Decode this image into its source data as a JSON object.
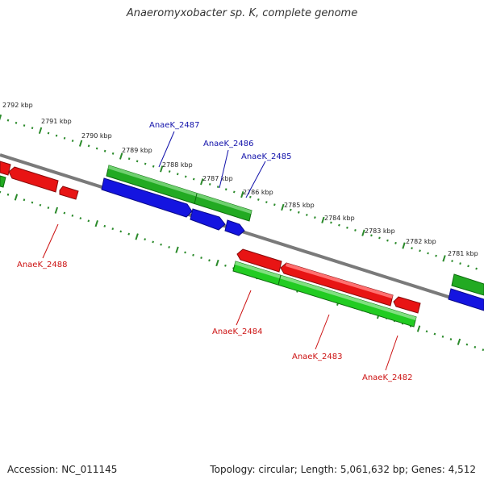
{
  "title": "Anaeromyxobacter sp. K, complete genome",
  "footer": {
    "accession": "Accession: NC_011145",
    "summary": "Topology: circular; Length: 5,061,632 bp; Genes: 4,512"
  },
  "colors": {
    "backbone": "#7a7a7a",
    "forward_gene": "#22aa22",
    "reverse_gene": "#dd1111",
    "blue_feature": "#1111dd",
    "ticks": "#2a8a2a",
    "label_forward": "#1111aa",
    "label_reverse": "#cc1111"
  },
  "scale_ticks": [
    "2792 kbp",
    "2791 kbp",
    "2790 kbp",
    "2789 kbp",
    "2788 kbp",
    "2787 kbp",
    "2786 kbp",
    "2785 kbp",
    "2784 kbp",
    "2783 kbp",
    "2782 kbp",
    "2781 kbp"
  ],
  "gene_labels_upper": [
    "AnaeK_2487",
    "AnaeK_2486",
    "AnaeK_2485"
  ],
  "gene_labels_lower": [
    "AnaeK_2488",
    "AnaeK_2484",
    "AnaeK_2483",
    "AnaeK_2482"
  ]
}
